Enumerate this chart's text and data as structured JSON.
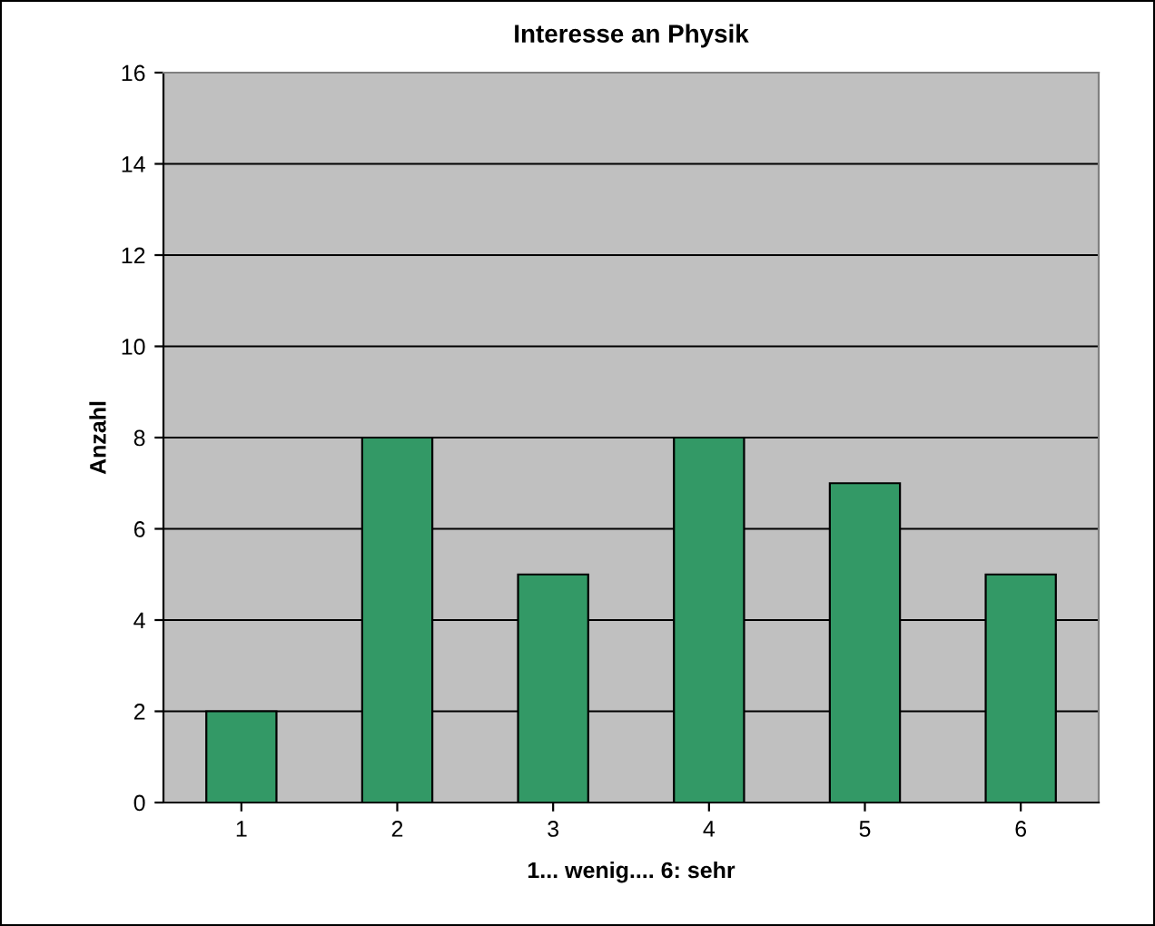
{
  "chart_data": {
    "type": "bar",
    "title": "Interesse an Physik",
    "xlabel": "1... wenig.... 6: sehr",
    "ylabel": "Anzahl",
    "categories": [
      "1",
      "2",
      "3",
      "4",
      "5",
      "6"
    ],
    "values": [
      2,
      8,
      5,
      8,
      7,
      5
    ],
    "color": "#339966",
    "ylim": [
      0,
      16
    ],
    "yticks": [
      0,
      2,
      4,
      6,
      8,
      10,
      12,
      14,
      16
    ],
    "grid": "y",
    "legend": false
  }
}
